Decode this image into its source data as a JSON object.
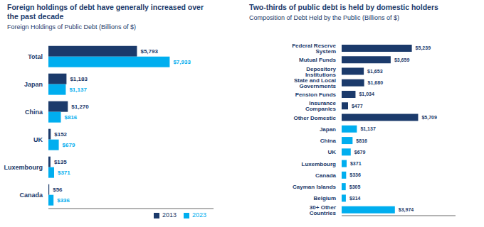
{
  "chart_data": [
    {
      "type": "bar",
      "orientation": "horizontal",
      "title": "Foreign holdings of debt have generally increased over\nthe past decade",
      "subtitle": "Foreign Holdings of Public Debt (Billions of $)",
      "categories": [
        "Total",
        "Japan",
        "China",
        "UK",
        "Luxembourg",
        "Canada"
      ],
      "series": [
        {
          "name": "2013",
          "color": "#1b3a6b",
          "values": [
            5793,
            1183,
            1270,
            152,
            135,
            56
          ],
          "value_labels": [
            "$5,793",
            "$1,183",
            "$1,270",
            "$152",
            "$135",
            "$56"
          ]
        },
        {
          "name": "2023",
          "color": "#00aeef",
          "values": [
            7933,
            1137,
            816,
            679,
            371,
            336
          ],
          "value_labels": [
            "$7,933",
            "$1,137",
            "$816",
            "$679",
            "$371",
            "$336"
          ]
        }
      ],
      "xlim": [
        0,
        10800
      ],
      "tick_labels": "y",
      "data_labels": true,
      "legend": "lower right",
      "grid": false
    },
    {
      "type": "bar",
      "orientation": "horizontal",
      "title": "Two-thirds of public debt is held by domestic holders",
      "subtitle": "Composition of Debt Held by the Public (Billions of $)",
      "categories": [
        "Federal Reserve System",
        "Mutual Funds",
        "Depository Institutions",
        "State and Local Governments",
        "Pension Funds",
        "Insurance Companies",
        "Other Domestic",
        "Japan",
        "China",
        "UK",
        "Luxembourg",
        "Canada",
        "Cayman Islands",
        "Belgium",
        "30+ Other Countries"
      ],
      "values": [
        5239,
        3659,
        1653,
        1680,
        1034,
        477,
        5709,
        1137,
        816,
        679,
        371,
        336,
        305,
        314,
        3974
      ],
      "value_labels": [
        "$5,239",
        "$3,659",
        "$1,653",
        "$1,680",
        "$1,034",
        "$477",
        "$5,709",
        "$1,137",
        "$816",
        "$679",
        "$371",
        "$336",
        "$305",
        "$314",
        "$3,974"
      ],
      "colors": [
        "#1b3a6b",
        "#1b3a6b",
        "#1b3a6b",
        "#1b3a6b",
        "#1b3a6b",
        "#1b3a6b",
        "#1b3a6b",
        "#00aeef",
        "#00aeef",
        "#00aeef",
        "#00aeef",
        "#00aeef",
        "#00aeef",
        "#00aeef",
        "#00aeef"
      ],
      "xlim": [
        0,
        8500
      ],
      "tick_labels": "y",
      "data_labels": true,
      "grid": false
    }
  ]
}
